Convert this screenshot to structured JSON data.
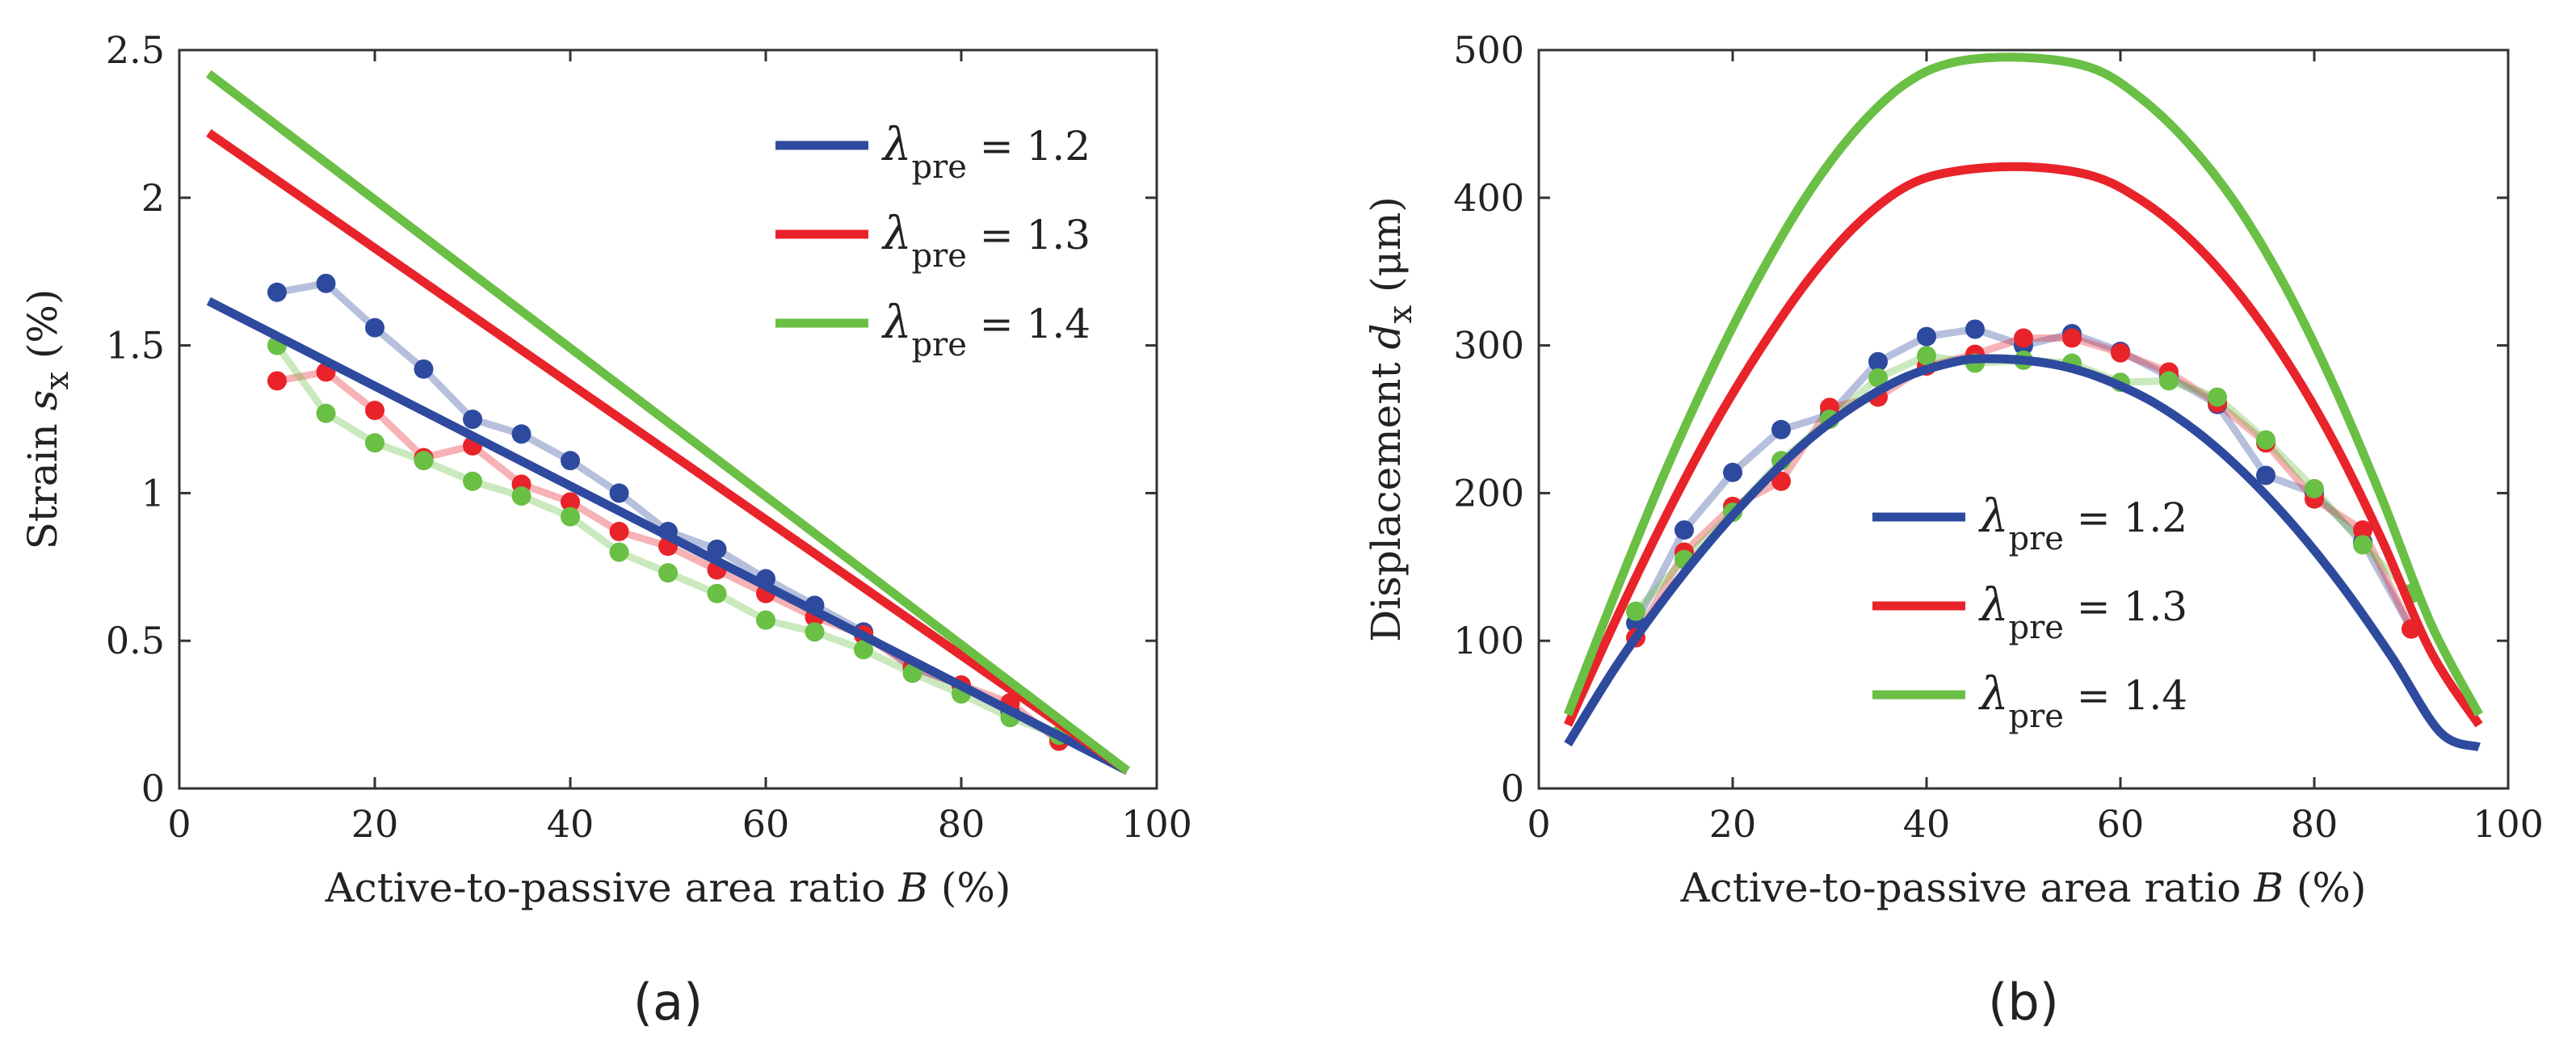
{
  "chart_data": [
    {
      "type": "line",
      "panel_label": "(a)",
      "xlabel": "Active-to-passive area ratio",
      "xlabel_var": "B",
      "xlabel_unit": "(%)",
      "ylabel": "Strain",
      "ylabel_var": "s",
      "ylabel_sub": "x",
      "ylabel_unit": "(%)",
      "xlim": [
        0,
        100
      ],
      "ylim": [
        0,
        2.5
      ],
      "xticks": [
        0,
        20,
        40,
        60,
        80,
        100
      ],
      "yticks": [
        0,
        0.5,
        1,
        1.5,
        2,
        2.5
      ],
      "xtick_labels": [
        "0",
        "20",
        "40",
        "60",
        "80",
        "100"
      ],
      "ytick_labels": [
        "0",
        "0.5",
        "1",
        "1.5",
        "2",
        "2.5"
      ],
      "legend_position": "top-right",
      "series": [
        {
          "name": "λpre = 1.2",
          "symbol": "λ",
          "sub": "pre",
          "value_text": "= 1.2",
          "color": "#2E4A9E",
          "model": {
            "x": [
              3,
              97
            ],
            "y": [
              1.65,
              0.06
            ]
          },
          "experiment": {
            "x": [
              10,
              15,
              20,
              25,
              30,
              35,
              40,
              45,
              50,
              55,
              60,
              65,
              70,
              75,
              80,
              85,
              90
            ],
            "y": [
              1.68,
              1.71,
              1.56,
              1.42,
              1.25,
              1.2,
              1.11,
              1.0,
              0.87,
              0.81,
              0.71,
              0.62,
              0.53,
              0.41,
              0.35,
              0.26,
              0.17
            ]
          }
        },
        {
          "name": "λpre = 1.3",
          "symbol": "λ",
          "sub": "pre",
          "value_text": "= 1.3",
          "color": "#E8232A",
          "model": {
            "x": [
              3,
              97
            ],
            "y": [
              2.22,
              0.06
            ]
          },
          "experiment": {
            "x": [
              10,
              15,
              20,
              25,
              30,
              35,
              40,
              45,
              50,
              55,
              60,
              65,
              70,
              75,
              80,
              85,
              90
            ],
            "y": [
              1.38,
              1.41,
              1.28,
              1.12,
              1.16,
              1.03,
              0.97,
              0.87,
              0.82,
              0.74,
              0.66,
              0.58,
              0.52,
              0.41,
              0.35,
              0.29,
              0.16
            ]
          }
        },
        {
          "name": "λpre = 1.4",
          "symbol": "λ",
          "sub": "pre",
          "value_text": "= 1.4",
          "color": "#6ABF45",
          "model": {
            "x": [
              3,
              97
            ],
            "y": [
              2.42,
              0.06
            ]
          },
          "experiment": {
            "x": [
              10,
              15,
              20,
              25,
              30,
              35,
              40,
              45,
              50,
              55,
              60,
              65,
              70,
              75,
              80,
              85,
              90
            ],
            "y": [
              1.5,
              1.27,
              1.17,
              1.11,
              1.04,
              0.99,
              0.92,
              0.8,
              0.73,
              0.66,
              0.57,
              0.53,
              0.47,
              0.39,
              0.32,
              0.24,
              0.18
            ]
          }
        }
      ]
    },
    {
      "type": "line",
      "panel_label": "(b)",
      "xlabel": "Active-to-passive area ratio",
      "xlabel_var": "B",
      "xlabel_unit": "(%)",
      "ylabel": "Displacement",
      "ylabel_var": "d",
      "ylabel_sub": "x",
      "ylabel_unit": "(μm)",
      "xlim": [
        0,
        100
      ],
      "ylim": [
        0,
        500
      ],
      "xticks": [
        0,
        20,
        40,
        60,
        80,
        100
      ],
      "yticks": [
        0,
        100,
        200,
        300,
        400,
        500
      ],
      "xtick_labels": [
        "0",
        "20",
        "40",
        "60",
        "80",
        "100"
      ],
      "ytick_labels": [
        "0",
        "100",
        "200",
        "300",
        "400",
        "500"
      ],
      "legend_position": "bottom-center",
      "series": [
        {
          "name": "λpre = 1.2",
          "symbol": "λ",
          "sub": "pre",
          "value_text": "= 1.2",
          "color": "#2E4A9E",
          "model": {
            "x": [
              3,
              8,
              13,
              18,
              23,
              28,
              33,
              38,
              43,
              46,
              50,
              54,
              58,
              63,
              68,
              73,
              78,
              83,
              88,
              93,
              97
            ],
            "y": [
              30,
              83,
              129,
              170,
              206,
              237,
              261,
              279,
              289,
              291,
              290,
              286,
              278,
              263,
              241,
              212,
              177,
              136,
              89,
              38,
              28
            ]
          },
          "experiment": {
            "x": [
              10,
              15,
              20,
              25,
              30,
              35,
              40,
              45,
              50,
              55,
              60,
              65,
              70,
              75,
              80,
              85,
              90
            ],
            "y": [
              112,
              175,
              214,
              243,
              253,
              289,
              306,
              311,
              300,
              308,
              296,
              279,
              260,
              212,
              200,
              167,
              108
            ]
          }
        },
        {
          "name": "λpre = 1.3",
          "symbol": "λ",
          "sub": "pre",
          "value_text": "= 1.3",
          "color": "#E8232A",
          "model": {
            "x": [
              3,
              8,
              13,
              18,
              23,
              28,
              33,
              38,
              43,
              50,
              57,
              62,
              67,
              72,
              77,
              82,
              87,
              92,
              97
            ],
            "y": [
              43,
              115,
              183,
              245,
              299,
              346,
              383,
              408,
              418,
              421,
              415,
              399,
              373,
              337,
              291,
              235,
              168,
              93,
              43
            ]
          },
          "experiment": {
            "x": [
              10,
              15,
              20,
              25,
              30,
              35,
              40,
              45,
              50,
              55,
              60,
              65,
              70,
              75,
              80,
              85,
              90
            ],
            "y": [
              102,
              160,
              191,
              208,
              258,
              265,
              286,
              294,
              305,
              305,
              295,
              282,
              261,
              234,
              196,
              175,
              108
            ]
          }
        },
        {
          "name": "λpre = 1.4",
          "symbol": "λ",
          "sub": "pre",
          "value_text": "= 1.4",
          "color": "#6ABF45",
          "model": {
            "x": [
              3,
              8,
              13,
              18,
              23,
              28,
              33,
              38,
              43,
              50,
              57,
              62,
              67,
              72,
              77,
              82,
              87,
              92,
              97
            ],
            "y": [
              50,
              134,
              214,
              286,
              350,
              405,
              448,
              478,
              492,
              495,
              488,
              468,
              437,
              395,
              340,
              273,
              196,
              112,
              50
            ]
          },
          "experiment": {
            "x": [
              10,
              15,
              20,
              25,
              30,
              35,
              40,
              45,
              50,
              55,
              60,
              65,
              70,
              75,
              80,
              85,
              90
            ],
            "y": [
              120,
              155,
              187,
              222,
              250,
              278,
              293,
              288,
              290,
              288,
              275,
              276,
              265,
              236,
              203,
              165,
              132
            ]
          }
        }
      ]
    }
  ]
}
